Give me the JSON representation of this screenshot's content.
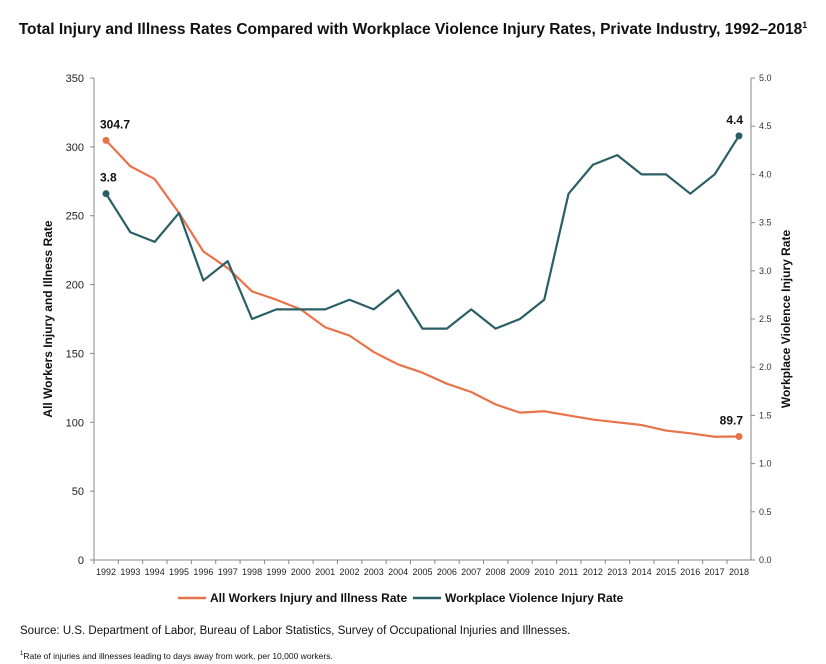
{
  "chart_data": {
    "type": "line",
    "title": "Total Injury and Illness Rates Compared with Workplace Violence Injury Rates, Private Industry, 1992–2018",
    "title_footnote_mark": "1",
    "x": [
      1992,
      1993,
      1994,
      1995,
      1996,
      1997,
      1998,
      1999,
      2000,
      2001,
      2002,
      2003,
      2004,
      2005,
      2006,
      2007,
      2008,
      2009,
      2010,
      2011,
      2012,
      2013,
      2014,
      2015,
      2016,
      2017,
      2018
    ],
    "x_tick_labels": [
      "1992",
      "1993",
      "1994",
      "1995",
      "1996",
      "1997",
      "1998",
      "1999",
      "2000",
      "2001",
      "2002",
      "2003",
      "2004",
      "2005",
      "2006",
      "2007",
      "2008",
      "2009",
      "2010",
      "2011",
      "2012",
      "2013",
      "2014",
      "2015",
      "2016",
      "2017",
      "2018"
    ],
    "ylabel": "All Workers Injury and Illness Rate",
    "ylim": [
      0,
      350
    ],
    "y_ticks": [
      "0",
      "50",
      "100",
      "150",
      "200",
      "250",
      "300",
      "350"
    ],
    "y2label": "Workplace Violence Injury Rate",
    "y2lim": [
      0,
      5
    ],
    "y2_ticks": [
      "0.0",
      "0.5",
      "1.0",
      "1.5",
      "2.0",
      "2.5",
      "3.0",
      "3.5",
      "4.0",
      "4.5",
      "5.0"
    ],
    "series": [
      {
        "name": "All Workers Injury and Illness Rate",
        "axis": "left",
        "color": "#E8734A",
        "values": [
          304.7,
          285.9,
          276.6,
          252,
          224,
          212,
          195,
          189,
          182,
          169,
          163,
          151,
          142,
          136,
          128,
          122,
          113,
          107,
          108,
          105,
          102,
          100,
          98,
          94,
          92,
          89.5,
          89.7
        ],
        "labels": {
          "first": "304.7",
          "last": "89.7"
        }
      },
      {
        "name": "Workplace Violence Injury Rate",
        "axis": "right",
        "color": "#2B5F66",
        "values": [
          3.8,
          3.4,
          3.3,
          3.6,
          2.9,
          3.1,
          2.5,
          2.6,
          2.6,
          2.6,
          2.7,
          2.6,
          2.8,
          2.4,
          2.4,
          2.6,
          2.4,
          2.5,
          2.7,
          3.8,
          4.1,
          4.2,
          4.0,
          4.0,
          3.8,
          4.0,
          4.4
        ],
        "labels": {
          "first": "3.8",
          "last": "4.4"
        }
      }
    ],
    "legend_position": "bottom",
    "grid": false
  },
  "source": "Source: U.S. Department of Labor, Bureau of Labor Statistics, Survey of Occupational Injuries and Illnesses.",
  "footnote_mark": "1",
  "footnote": "Rate of injuries and illnesses leading to days away from work, per 10,000 workers."
}
